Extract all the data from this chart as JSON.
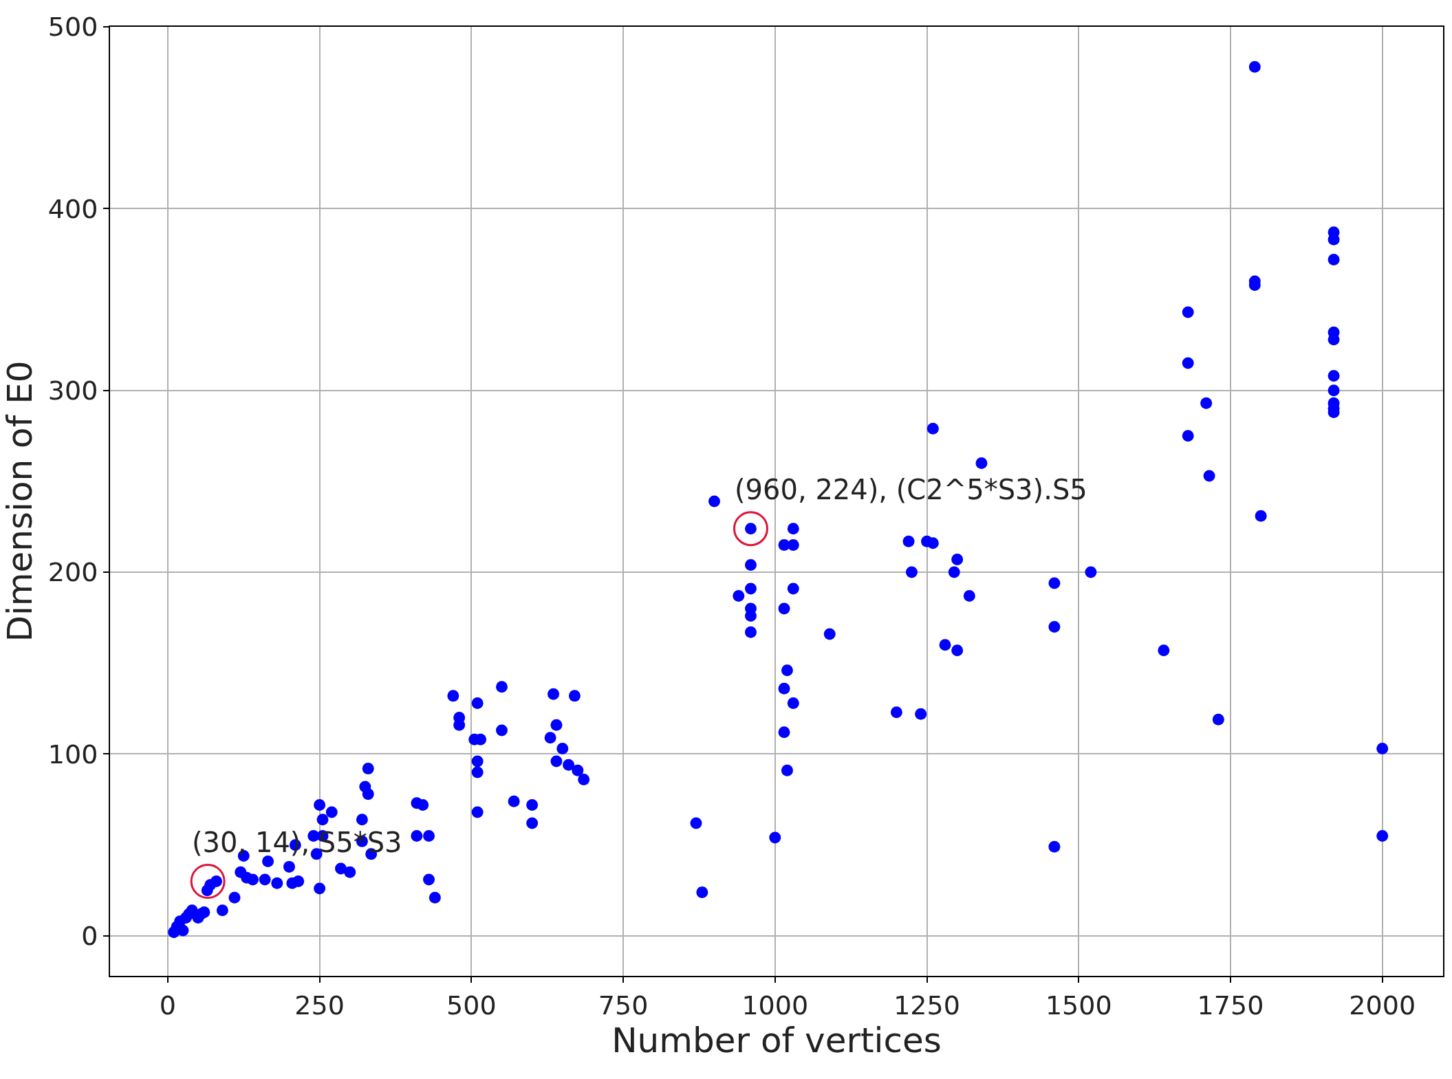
{
  "chart_data": {
    "type": "scatter",
    "xlabel": "Number of vertices",
    "ylabel": "Dimension of E0",
    "x": [
      10,
      15,
      20,
      25,
      30,
      35,
      40,
      50,
      55,
      60,
      65,
      70,
      80,
      90,
      110,
      120,
      125,
      130,
      140,
      160,
      165,
      180,
      200,
      205,
      210,
      215,
      240,
      245,
      250,
      250,
      255,
      255,
      270,
      285,
      300,
      320,
      320,
      325,
      330,
      330,
      335,
      410,
      410,
      420,
      430,
      430,
      440,
      470,
      480,
      480,
      505,
      510,
      510,
      510,
      510,
      515,
      550,
      550,
      570,
      600,
      600,
      630,
      635,
      640,
      640,
      650,
      660,
      670,
      675,
      685,
      870,
      880,
      900,
      960,
      960,
      960,
      960,
      960,
      960,
      940,
      1000,
      1015,
      1030,
      1030,
      1030,
      1015,
      1020,
      1015,
      1030,
      1015,
      1020,
      1090,
      1200,
      1220,
      1225,
      1240,
      1250,
      1260,
      1260,
      1280,
      1295,
      1300,
      1300,
      1320,
      1340,
      1460,
      1460,
      1460,
      1520,
      1640,
      1680,
      1680,
      1680,
      1710,
      1715,
      1730,
      1790,
      1790,
      1790,
      1800,
      1920,
      1920,
      1920,
      1920,
      1920,
      1920,
      1920,
      1920,
      1920,
      1920,
      2000,
      2000
    ],
    "values": [
      2,
      5,
      8,
      3,
      10,
      12,
      14,
      10,
      12,
      13,
      25,
      28,
      30,
      14,
      21,
      35,
      44,
      32,
      31,
      31,
      41,
      29,
      38,
      29,
      50,
      30,
      55,
      45,
      26,
      72,
      64,
      55,
      68,
      37,
      35,
      64,
      52,
      82,
      78,
      92,
      45,
      73,
      55,
      72,
      55,
      31,
      21,
      132,
      120,
      116,
      108,
      90,
      96,
      68,
      128,
      108,
      137,
      113,
      74,
      72,
      62,
      109,
      133,
      116,
      96,
      103,
      94,
      132,
      91,
      86,
      62,
      24,
      239,
      224,
      204,
      191,
      180,
      176,
      167,
      187,
      54,
      215,
      215,
      224,
      191,
      180,
      146,
      136,
      128,
      112,
      91,
      166,
      123,
      217,
      200,
      122,
      217,
      216,
      279,
      160,
      200,
      207,
      157,
      187,
      260,
      194,
      170,
      49,
      200,
      157,
      343,
      315,
      275,
      293,
      253,
      119,
      478,
      358,
      360,
      231,
      387,
      383,
      372,
      332,
      328,
      308,
      300,
      293,
      290,
      288,
      103,
      55
    ],
    "color": "#0000ff",
    "marker": "circle",
    "xlim": [
      -95,
      2100
    ],
    "ylim": [
      -22,
      500
    ],
    "xticks": [
      0,
      250,
      500,
      750,
      1000,
      1250,
      1500,
      1750,
      2000
    ],
    "yticks": [
      0,
      100,
      200,
      300,
      400,
      500
    ],
    "grid": true,
    "annotations": [
      {
        "text": "(30, 14), S5*S3",
        "x": 66,
        "y": 30
      },
      {
        "text": "(960, 224), (C2^5*S3).S5",
        "x": 960,
        "y": 224
      }
    ]
  }
}
